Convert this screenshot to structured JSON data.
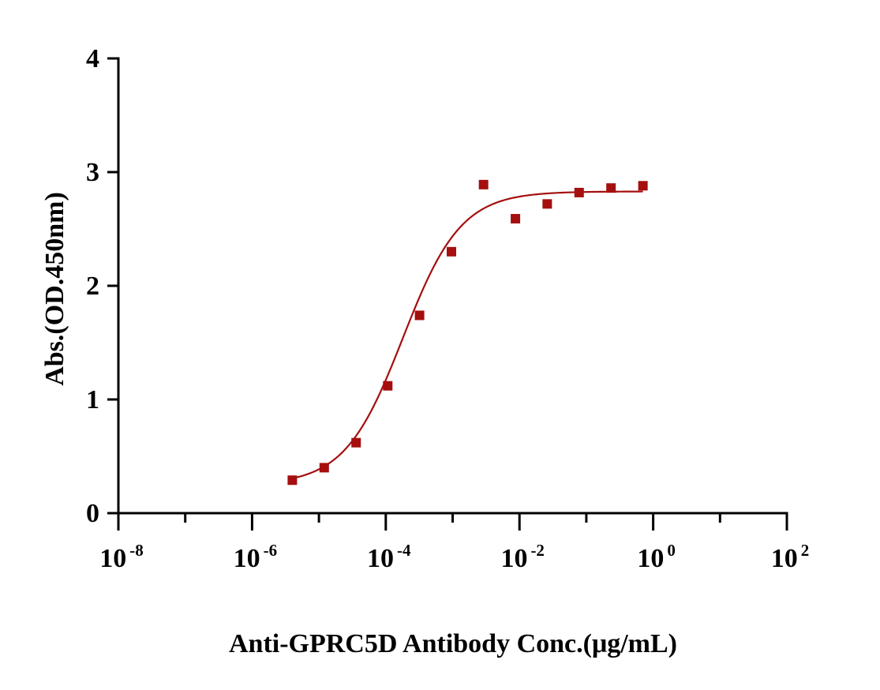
{
  "chart_data": {
    "type": "scatter",
    "xscale": "log",
    "xlabel": "Anti-GPRC5D Antibody Conc.(μg/mL)",
    "ylabel": "Abs.(OD.450nm)",
    "xlim": [
      1e-08,
      100
    ],
    "ylim": [
      0,
      4
    ],
    "x_ticks": [
      {
        "base": "10",
        "exp": "-8",
        "value": 1e-08
      },
      {
        "base": "10",
        "exp": "-6",
        "value": 1e-06
      },
      {
        "base": "10",
        "exp": "-4",
        "value": 0.0001
      },
      {
        "base": "10",
        "exp": "-2",
        "value": 0.01
      },
      {
        "base": "10",
        "exp": "0",
        "value": 1
      },
      {
        "base": "10",
        "exp": "2",
        "value": 100
      }
    ],
    "y_ticks": [
      "0",
      "1",
      "2",
      "3",
      "4"
    ],
    "grid": false,
    "marker_color": "#a50f0f",
    "curve_color": "#a50f0f",
    "series": [
      {
        "x": [
          4e-06,
          1.2e-05,
          3.6e-05,
          0.000107,
          0.00032,
          0.00096,
          0.0029,
          0.0087,
          0.026,
          0.078,
          0.234,
          0.703
        ],
        "y": [
          0.29,
          0.4,
          0.62,
          1.12,
          1.74,
          2.3,
          2.89,
          2.59,
          2.72,
          2.82,
          2.86,
          2.88
        ]
      }
    ],
    "fit": {
      "model": "4PL",
      "bottom": 0.25,
      "top": 2.83,
      "ec50": 0.00018,
      "hill": 1.0,
      "x_range": [
        4e-06,
        0.703
      ]
    }
  }
}
